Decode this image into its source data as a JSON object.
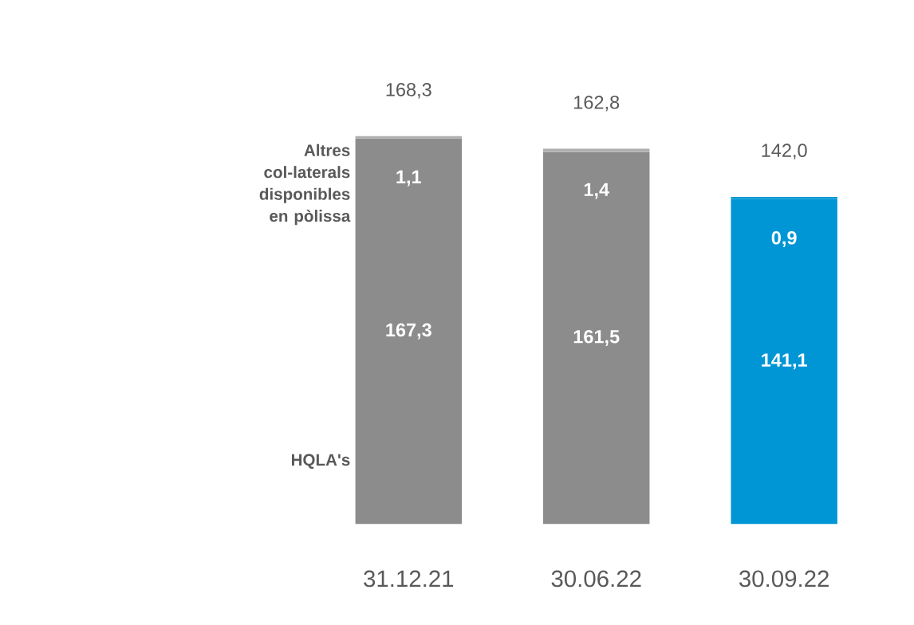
{
  "chart_data": {
    "type": "bar",
    "stacked": true,
    "categories": [
      "31.12.21",
      "30.06.22",
      "30.09.22"
    ],
    "series": [
      {
        "name": "HQLA's",
        "colors": [
          "#8c8c8c",
          "#8c8c8c",
          "#0096d6"
        ],
        "values": [
          167.3,
          161.5,
          141.1
        ],
        "value_labels": [
          "167,3",
          "161,5",
          "141,1"
        ]
      },
      {
        "name": "Altres col-laterals disponibles en pòlissa",
        "colors": [
          "#b0b0b0",
          "#b0b0b0",
          "#0096d6"
        ],
        "values": [
          1.1,
          1.4,
          0.9
        ],
        "value_labels": [
          "1,1",
          "1,4",
          "0,9"
        ]
      }
    ],
    "totals": [
      "168,3",
      "162,8",
      "142,0"
    ]
  }
}
